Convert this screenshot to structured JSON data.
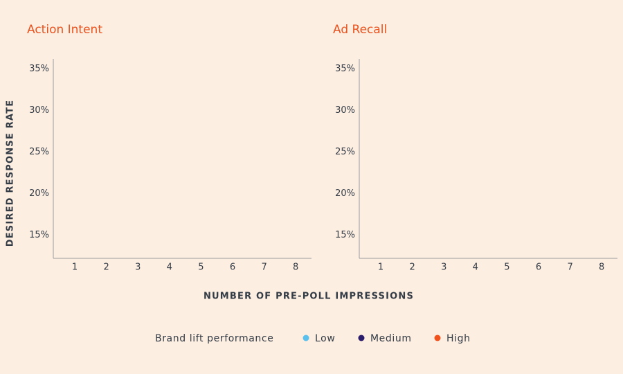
{
  "chart_data": [
    {
      "type": "line",
      "title": "Action Intent",
      "xlim": [
        0.32,
        8.5
      ],
      "xticks": [
        1,
        2,
        3,
        4,
        5,
        6,
        7,
        8
      ],
      "ylim": [
        12.2,
        36.2
      ],
      "yticks": [
        {
          "value": 15,
          "label": "15%"
        },
        {
          "value": 20,
          "label": "20%"
        },
        {
          "value": 25,
          "label": "25%"
        },
        {
          "value": 30,
          "label": "30%"
        },
        {
          "value": 35,
          "label": "35%"
        }
      ]
    },
    {
      "type": "line",
      "title": "Ad Recall",
      "xlim": [
        0.32,
        8.5
      ],
      "xticks": [
        1,
        2,
        3,
        4,
        5,
        6,
        7,
        8
      ],
      "ylim": [
        12.2,
        36.2
      ],
      "yticks": [
        {
          "value": 15,
          "label": "15%"
        },
        {
          "value": 20,
          "label": "20%"
        },
        {
          "value": 25,
          "label": "25%"
        },
        {
          "value": 30,
          "label": "30%"
        },
        {
          "value": 35,
          "label": "35%"
        }
      ]
    }
  ],
  "y_label": "DESIRED RESPONSE RATE",
  "x_label": "NUMBER OF PRE-POLL IMPRESSIONS",
  "legend": {
    "title": "Brand lift performance",
    "series": [
      {
        "name": "Low",
        "color": "#5bc0eb"
      },
      {
        "name": "Medium",
        "color": "#2b1d6b"
      },
      {
        "name": "High",
        "color": "#f0521e"
      }
    ]
  }
}
